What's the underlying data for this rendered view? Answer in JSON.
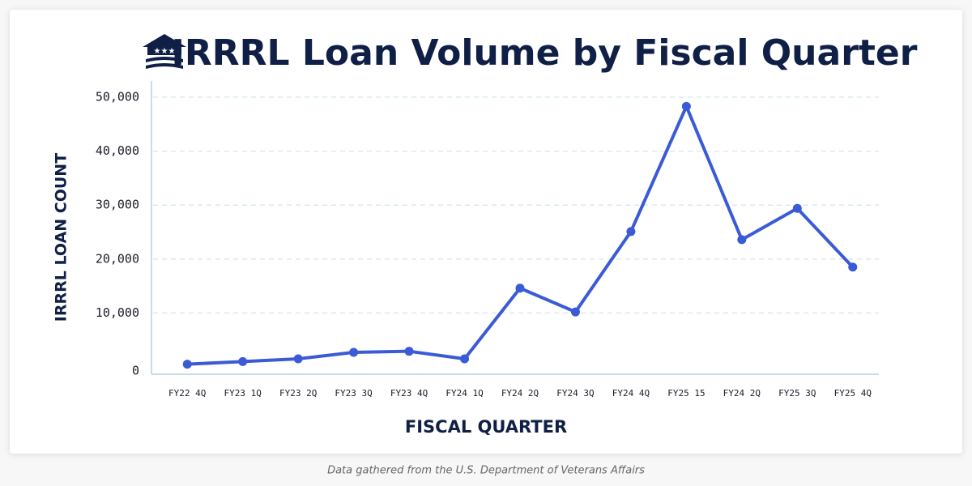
{
  "chart_data": {
    "type": "line",
    "title": "IRRRL Loan Volume by Fiscal Quarter",
    "x_label": "FISCAL QUARTER",
    "y_label": "IRRRL LOAN COUNT",
    "source": "Data gathered from the U.S. Department of Veterans Affairs",
    "categories": [
      "FY22 4Q",
      "FY23 1Q",
      "FY23 2Q",
      "FY23 3Q",
      "FY23 4Q",
      "FY24 1Q",
      "FY24 2Q",
      "FY24 3Q",
      "FY24 4Q",
      "FY25 15",
      "FY24 2Q",
      "FY25 3Q",
      "FY25 4Q"
    ],
    "values": [
      500,
      1000,
      1500,
      2700,
      2900,
      1500,
      14600,
      10200,
      25100,
      48300,
      23600,
      29400,
      18500
    ],
    "color": "#3b5bd6",
    "ylim": [
      0,
      50000
    ],
    "yticks": [
      0,
      {
        "value": 10000,
        "label": "10,000"
      },
      {
        "value": 20000,
        "label": "20,000"
      },
      {
        "value": 30000,
        "label": "30,000"
      },
      {
        "value": 40000,
        "label": "40,000"
      },
      {
        "value": 50000,
        "label": "50,000"
      }
    ],
    "grid": true
  }
}
